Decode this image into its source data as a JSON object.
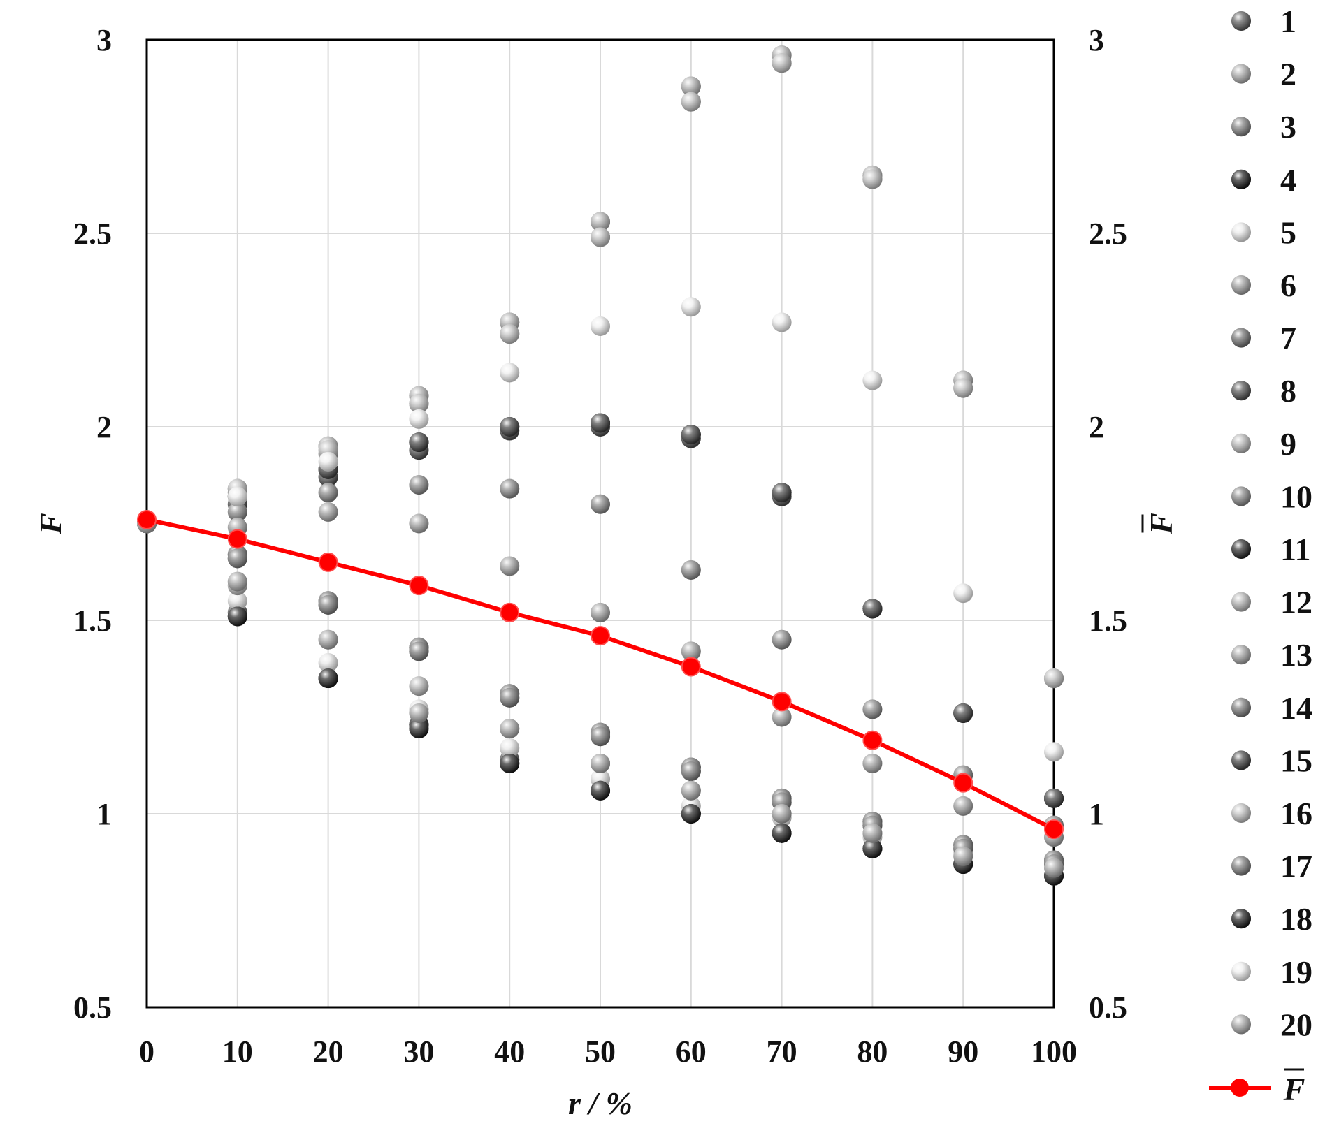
{
  "chart_data": {
    "type": "scatter",
    "xlabel": "r / %",
    "ylabel_left": "F",
    "ylabel_right": "F",
    "x": [
      0,
      10,
      20,
      30,
      40,
      50,
      60,
      70,
      80,
      90,
      100
    ],
    "x_ticks": [
      "0",
      "10",
      "20",
      "30",
      "40",
      "50",
      "60",
      "70",
      "80",
      "90",
      "100"
    ],
    "y_ticks": [
      "0.5",
      "1",
      "1.5",
      "2",
      "2.5",
      "3"
    ],
    "xlim": [
      0,
      100
    ],
    "ylim": [
      0.5,
      3
    ],
    "grid": true,
    "legend_position": "right",
    "series_colors": [
      "#555555",
      "#a8a8a8",
      "#7a7a7a",
      "#141414",
      "#e6e6e6",
      "#9c9c9c",
      "#6b6b6b",
      "#4a4a4a",
      "#b4b4b4",
      "#848484",
      "#1e1e1e",
      "#b0b0b0",
      "#a0a0a0",
      "#747474",
      "#3c3c3c",
      "#bdbdbd",
      "#767676",
      "#181818",
      "#ececec",
      "#a4a4a4"
    ],
    "series": [
      {
        "name": "1",
        "values": [
          1.75,
          1.52,
          1.35,
          1.23,
          1.14,
          1.06,
          1.0,
          0.95,
          0.91,
          0.87,
          0.84
        ]
      },
      {
        "name": "2",
        "values": [
          1.75,
          1.84,
          1.95,
          2.08,
          2.27,
          2.53,
          2.88,
          2.96,
          2.65,
          2.12,
          1.35
        ]
      },
      {
        "name": "3",
        "values": [
          1.75,
          1.67,
          1.55,
          1.43,
          1.31,
          1.21,
          1.12,
          1.04,
          0.98,
          0.92,
          0.88
        ]
      },
      {
        "name": "4",
        "values": [
          1.75,
          1.82,
          1.89,
          1.96,
          2.0,
          2.01,
          1.98,
          1.83,
          1.53,
          1.26,
          1.04
        ]
      },
      {
        "name": "5",
        "values": [
          1.75,
          1.55,
          1.39,
          1.27,
          1.17,
          1.09,
          1.02,
          0.99,
          0.94,
          0.9,
          0.87
        ]
      },
      {
        "name": "6",
        "values": [
          1.75,
          1.83,
          1.93,
          2.06,
          2.24,
          2.49,
          2.84,
          2.94,
          2.64,
          2.1,
          1.35
        ]
      },
      {
        "name": "7",
        "values": [
          1.75,
          1.66,
          1.54,
          1.42,
          1.3,
          1.2,
          1.11,
          1.03,
          0.97,
          0.91,
          0.87
        ]
      },
      {
        "name": "8",
        "values": [
          1.75,
          1.8,
          1.87,
          1.94,
          1.99,
          2.0,
          1.97,
          1.82,
          1.53,
          1.26,
          1.04
        ]
      },
      {
        "name": "9",
        "values": [
          1.75,
          1.59,
          1.45,
          1.33,
          1.22,
          1.13,
          1.06,
          1.0,
          0.95,
          0.91,
          0.88
        ]
      },
      {
        "name": "10",
        "values": [
          1.75,
          1.78,
          1.83,
          1.85,
          1.84,
          1.8,
          1.63,
          1.45,
          1.27,
          1.1,
          0.97
        ]
      },
      {
        "name": "11",
        "values": [
          1.75,
          1.51,
          1.35,
          1.23,
          1.13,
          1.06,
          1.0,
          0.95,
          0.91,
          0.87,
          0.84
        ]
      },
      {
        "name": "12",
        "values": [
          1.75,
          1.84,
          1.95,
          2.08,
          2.27,
          2.53,
          2.88,
          2.96,
          2.65,
          2.12,
          1.35
        ]
      },
      {
        "name": "13",
        "values": [
          1.75,
          1.74,
          1.78,
          1.75,
          1.64,
          1.52,
          1.42,
          1.25,
          1.13,
          1.02,
          0.94
        ]
      },
      {
        "name": "14",
        "values": [
          1.75,
          1.67,
          1.55,
          1.43,
          1.31,
          1.21,
          1.12,
          1.04,
          0.98,
          0.92,
          0.88
        ]
      },
      {
        "name": "15",
        "values": [
          1.75,
          1.82,
          1.89,
          1.96,
          2.0,
          2.01,
          1.98,
          1.83,
          1.53,
          1.26,
          1.04
        ]
      },
      {
        "name": "16",
        "values": [
          1.75,
          1.84,
          1.94,
          2.06,
          2.24,
          2.49,
          2.84,
          2.94,
          2.64,
          2.1,
          1.35
        ]
      },
      {
        "name": "17",
        "values": [
          1.75,
          1.66,
          1.54,
          1.42,
          1.3,
          1.2,
          1.11,
          1.03,
          0.97,
          0.91,
          0.87
        ]
      },
      {
        "name": "18",
        "values": [
          1.75,
          1.51,
          1.35,
          1.22,
          1.13,
          1.06,
          1.0,
          0.95,
          0.91,
          0.87,
          0.84
        ]
      },
      {
        "name": "19",
        "values": [
          1.75,
          1.82,
          1.91,
          2.02,
          2.14,
          2.26,
          2.31,
          2.27,
          2.12,
          1.57,
          1.16
        ]
      },
      {
        "name": "20",
        "values": [
          1.75,
          1.6,
          1.45,
          1.26,
          1.22,
          1.13,
          1.06,
          1.0,
          0.95,
          0.89,
          0.86
        ]
      }
    ],
    "mean_series": {
      "name": "F",
      "color": "#ff0000",
      "values": [
        1.76,
        1.71,
        1.65,
        1.59,
        1.52,
        1.46,
        1.38,
        1.29,
        1.19,
        1.08,
        0.96
      ]
    }
  }
}
